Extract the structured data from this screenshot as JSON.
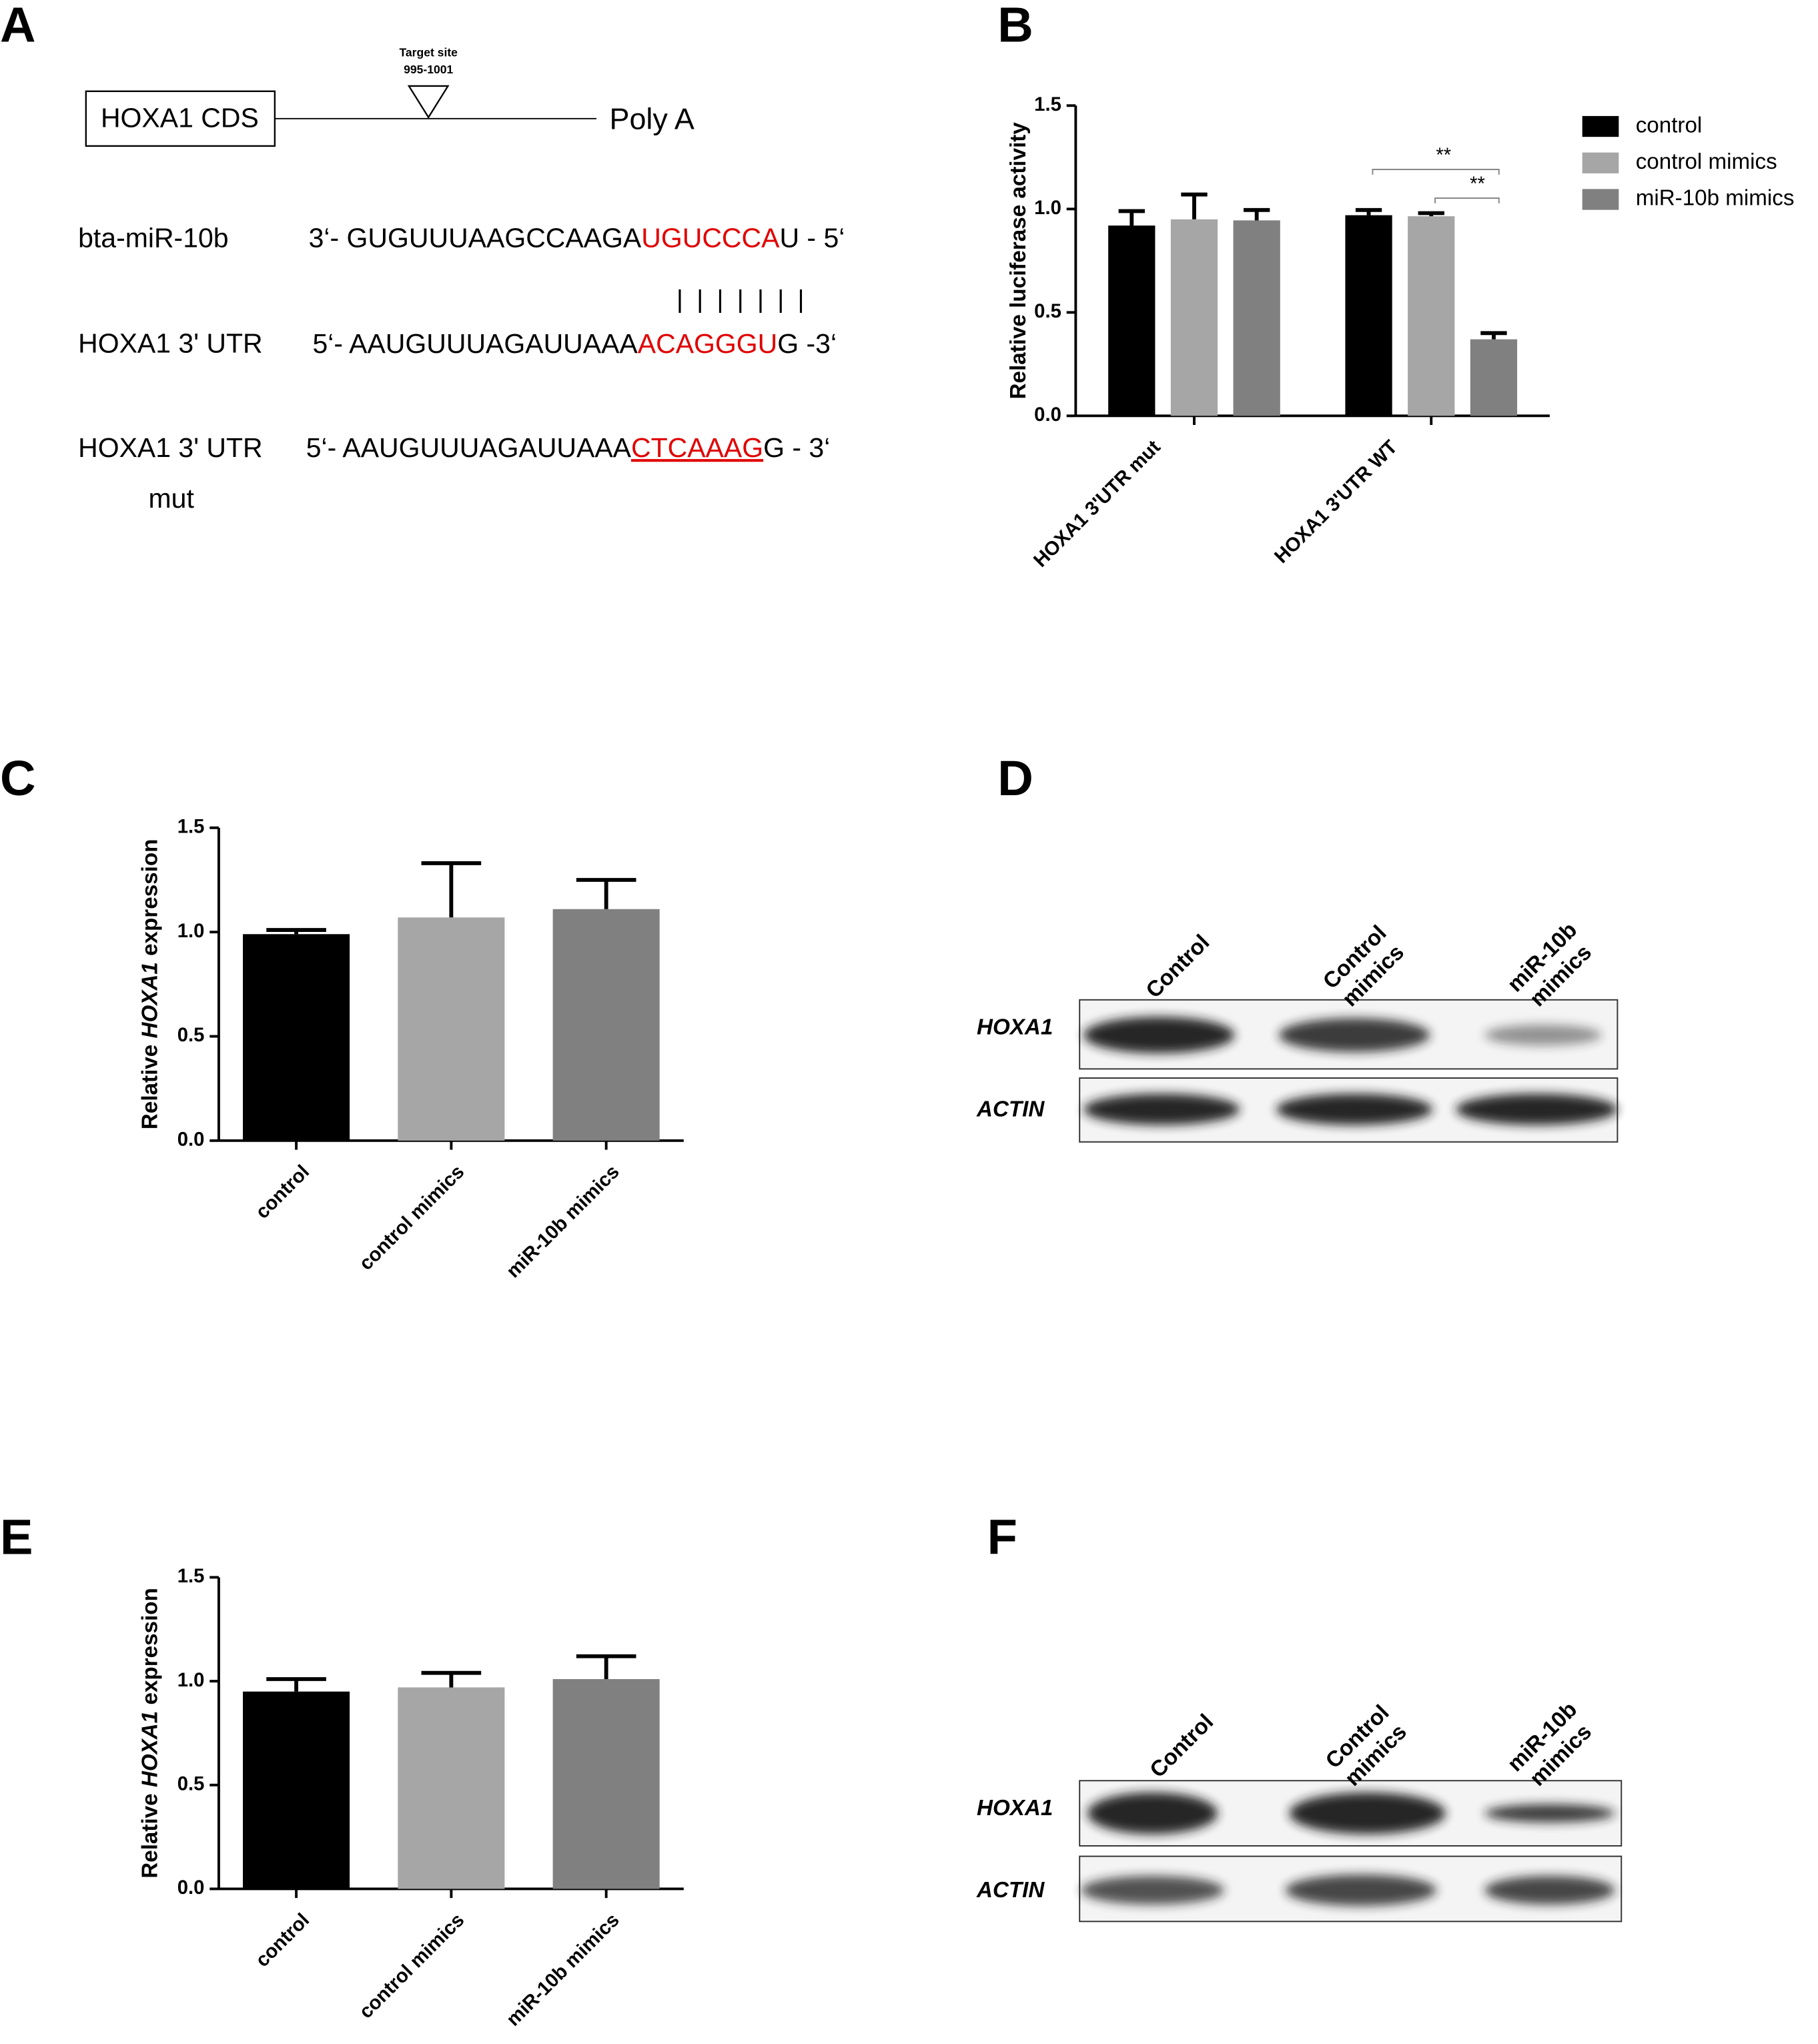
{
  "panel_labels": [
    "A",
    "B",
    "C",
    "D",
    "E",
    "F"
  ],
  "diagram": {
    "target_site": "Target site",
    "target_range": "995-1001",
    "cds": "HOXA1 CDS",
    "poly_a": "Poly A",
    "rows": [
      {
        "label": "bta-miR-10b",
        "prefix": "3‘- GUGUUUAAGCCAAGA",
        "highlight": "UGUCCCA",
        "suffix": "U - 5‘"
      },
      {
        "label": "HOXA1 3' UTR",
        "prefix": "5‘- AAUGUUUAGAUUAAA",
        "highlight": "ACAGGGU",
        "suffix": "G -3‘"
      },
      {
        "label": "HOXA1 3' UTR",
        "sublabel": "mut",
        "prefix": "5‘- AAUGUUUAGAUUAAA",
        "highlight": "CTCAAAG",
        "suffix": "G - 3‘"
      }
    ]
  },
  "chart_data": [
    {
      "type": "bar",
      "y_label": "Relative luciferase activity",
      "categories": [
        "HOXA1 3'UTR mut",
        "HOXA1 3'UTR WT"
      ],
      "series": [
        {
          "name": "control",
          "color": "#000000",
          "values": [
            0.92,
            0.97
          ],
          "errors": [
            0.07,
            0.025
          ]
        },
        {
          "name": "control mimics",
          "color": "#a6a6a6",
          "values": [
            0.95,
            0.965
          ],
          "errors": [
            0.12,
            0.015
          ]
        },
        {
          "name": "miR-10b mimics",
          "color": "#808080",
          "values": [
            0.945,
            0.37
          ],
          "errors": [
            0.05,
            0.03
          ]
        }
      ],
      "annotations": [
        "**",
        "**"
      ],
      "ylim": [
        0,
        1.5
      ],
      "yticks": [
        {
          "value": 0,
          "label": "0.0"
        },
        0.5,
        {
          "value": 1,
          "label": "1.0"
        },
        1.5
      ]
    },
    {
      "type": "bar",
      "y_label": [
        "Relative ",
        "HOXA1",
        " expression"
      ],
      "categories": [
        "control",
        "control mimics",
        "miR-10b mimics"
      ],
      "values": [
        0.99,
        1.07,
        1.11
      ],
      "errors": [
        0.02,
        0.26,
        0.14
      ],
      "colors": [
        "#000000",
        "#a6a6a6",
        "#808080"
      ],
      "ylim": [
        0,
        1.5
      ],
      "yticks": [
        {
          "value": 0,
          "label": "0.0"
        },
        0.5,
        {
          "value": 1,
          "label": "1.0"
        },
        1.5
      ]
    },
    {
      "type": "bar",
      "y_label": [
        "Relative ",
        "HOXA1",
        " expression"
      ],
      "categories": [
        "control",
        "control mimics",
        "miR-10b mimics"
      ],
      "values": [
        0.95,
        0.97,
        1.01
      ],
      "errors": [
        0.06,
        0.07,
        0.11
      ],
      "colors": [
        "#000000",
        "#a6a6a6",
        "#808080"
      ],
      "ylim": [
        0,
        1.5
      ],
      "yticks": [
        {
          "value": 0,
          "label": "0.0"
        },
        0.5,
        {
          "value": 1,
          "label": "1.0"
        },
        1.5
      ]
    }
  ],
  "blots": [
    {
      "lanes": [
        [
          "Control"
        ],
        [
          "Control",
          "mimics"
        ],
        [
          "miR-10b",
          "mimics"
        ]
      ],
      "rows": [
        "HOXA1",
        "ACTIN"
      ]
    },
    {
      "lanes": [
        [
          "Control"
        ],
        [
          "Control",
          "mimics"
        ],
        [
          "miR-10b",
          "mimics"
        ]
      ],
      "rows": [
        "HOXA1",
        "ACTIN"
      ]
    }
  ]
}
